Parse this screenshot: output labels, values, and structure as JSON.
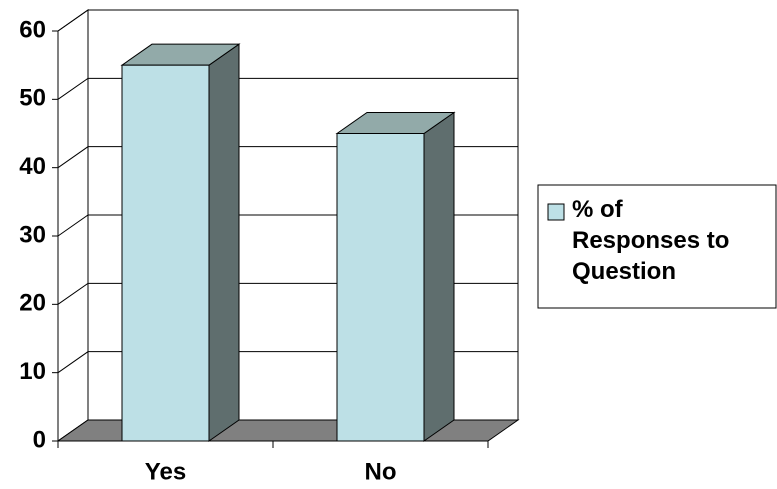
{
  "chart_data": {
    "type": "bar",
    "categories": [
      "Yes",
      "No"
    ],
    "series": [
      {
        "name": "% of Responses to Question",
        "color": "#bde0e6",
        "values": [
          55,
          45
        ]
      }
    ],
    "ylim": [
      0,
      60
    ],
    "yticks": [
      0,
      10,
      20,
      30,
      40,
      50,
      60
    ],
    "grid": true,
    "legend": "right"
  }
}
